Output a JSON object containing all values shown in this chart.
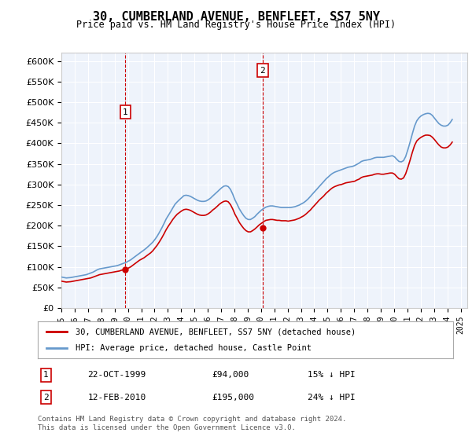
{
  "title": "30, CUMBERLAND AVENUE, BENFLEET, SS7 5NY",
  "subtitle": "Price paid vs. HM Land Registry's House Price Index (HPI)",
  "ylabel": "",
  "ylim": [
    0,
    620000
  ],
  "yticks": [
    0,
    50000,
    100000,
    150000,
    200000,
    250000,
    300000,
    350000,
    400000,
    450000,
    500000,
    550000,
    600000
  ],
  "xlim_start": 1995.0,
  "xlim_end": 2025.5,
  "background_color": "#ffffff",
  "plot_bg_color": "#eef3fb",
  "grid_color": "#ffffff",
  "red_line_color": "#cc0000",
  "blue_line_color": "#6699cc",
  "vline_color": "#cc0000",
  "marker1_date": 1999.81,
  "marker2_date": 2010.12,
  "marker1_price": 94000,
  "marker2_price": 195000,
  "legend_label_red": "30, CUMBERLAND AVENUE, BENFLEET, SS7 5NY (detached house)",
  "legend_label_blue": "HPI: Average price, detached house, Castle Point",
  "annotation1_label": "1",
  "annotation2_label": "2",
  "footnote": "Contains HM Land Registry data © Crown copyright and database right 2024.\nThis data is licensed under the Open Government Licence v3.0.",
  "table_rows": [
    [
      "1",
      "22-OCT-1999",
      "£94,000",
      "15% ↓ HPI"
    ],
    [
      "2",
      "12-FEB-2010",
      "£195,000",
      "24% ↓ HPI"
    ]
  ],
  "hpi_data": {
    "years": [
      1995.04,
      1995.21,
      1995.37,
      1995.54,
      1995.71,
      1995.87,
      1996.04,
      1996.21,
      1996.37,
      1996.54,
      1996.71,
      1996.87,
      1997.04,
      1997.21,
      1997.37,
      1997.54,
      1997.71,
      1997.87,
      1998.04,
      1998.21,
      1998.37,
      1998.54,
      1998.71,
      1998.87,
      1999.04,
      1999.21,
      1999.37,
      1999.54,
      1999.71,
      1999.87,
      2000.04,
      2000.21,
      2000.37,
      2000.54,
      2000.71,
      2000.87,
      2001.04,
      2001.21,
      2001.37,
      2001.54,
      2001.71,
      2001.87,
      2002.04,
      2002.21,
      2002.37,
      2002.54,
      2002.71,
      2002.87,
      2003.04,
      2003.21,
      2003.37,
      2003.54,
      2003.71,
      2003.87,
      2004.04,
      2004.21,
      2004.37,
      2004.54,
      2004.71,
      2004.87,
      2005.04,
      2005.21,
      2005.37,
      2005.54,
      2005.71,
      2005.87,
      2006.04,
      2006.21,
      2006.37,
      2006.54,
      2006.71,
      2006.87,
      2007.04,
      2007.21,
      2007.37,
      2007.54,
      2007.71,
      2007.87,
      2008.04,
      2008.21,
      2008.37,
      2008.54,
      2008.71,
      2008.87,
      2009.04,
      2009.21,
      2009.37,
      2009.54,
      2009.71,
      2009.87,
      2010.04,
      2010.21,
      2010.37,
      2010.54,
      2010.71,
      2010.87,
      2011.04,
      2011.21,
      2011.37,
      2011.54,
      2011.71,
      2011.87,
      2012.04,
      2012.21,
      2012.37,
      2012.54,
      2012.71,
      2012.87,
      2013.04,
      2013.21,
      2013.37,
      2013.54,
      2013.71,
      2013.87,
      2014.04,
      2014.21,
      2014.37,
      2014.54,
      2014.71,
      2014.87,
      2015.04,
      2015.21,
      2015.37,
      2015.54,
      2015.71,
      2015.87,
      2016.04,
      2016.21,
      2016.37,
      2016.54,
      2016.71,
      2016.87,
      2017.04,
      2017.21,
      2017.37,
      2017.54,
      2017.71,
      2017.87,
      2018.04,
      2018.21,
      2018.37,
      2018.54,
      2018.71,
      2018.87,
      2019.04,
      2019.21,
      2019.37,
      2019.54,
      2019.71,
      2019.87,
      2020.04,
      2020.21,
      2020.37,
      2020.54,
      2020.71,
      2020.87,
      2021.04,
      2021.21,
      2021.37,
      2021.54,
      2021.71,
      2021.87,
      2022.04,
      2022.21,
      2022.37,
      2022.54,
      2022.71,
      2022.87,
      2023.04,
      2023.21,
      2023.37,
      2023.54,
      2023.71,
      2023.87,
      2024.04,
      2024.21,
      2024.37
    ],
    "values": [
      75000,
      74000,
      73000,
      73500,
      74000,
      75000,
      76000,
      77000,
      78000,
      79000,
      80000,
      81000,
      83000,
      85000,
      87000,
      90000,
      93000,
      95000,
      96000,
      97000,
      98000,
      99000,
      100000,
      101000,
      102000,
      103000,
      105000,
      107000,
      109000,
      111000,
      114000,
      117000,
      121000,
      125000,
      129000,
      133000,
      137000,
      141000,
      145000,
      150000,
      155000,
      160000,
      167000,
      175000,
      184000,
      194000,
      205000,
      216000,
      225000,
      234000,
      243000,
      252000,
      258000,
      263000,
      268000,
      273000,
      274000,
      273000,
      271000,
      268000,
      265000,
      262000,
      260000,
      259000,
      259000,
      260000,
      263000,
      267000,
      272000,
      277000,
      282000,
      287000,
      292000,
      296000,
      297000,
      295000,
      288000,
      277000,
      263000,
      252000,
      241000,
      232000,
      224000,
      218000,
      215000,
      215000,
      218000,
      222000,
      228000,
      233000,
      238000,
      242000,
      245000,
      247000,
      248000,
      248000,
      247000,
      246000,
      245000,
      244000,
      244000,
      244000,
      244000,
      244000,
      245000,
      246000,
      248000,
      250000,
      253000,
      256000,
      260000,
      265000,
      271000,
      277000,
      283000,
      289000,
      295000,
      301000,
      307000,
      313000,
      318000,
      323000,
      327000,
      330000,
      332000,
      334000,
      336000,
      338000,
      340000,
      342000,
      343000,
      344000,
      346000,
      349000,
      352000,
      356000,
      358000,
      359000,
      360000,
      361000,
      363000,
      365000,
      366000,
      366000,
      366000,
      366000,
      367000,
      368000,
      369000,
      370000,
      367000,
      361000,
      356000,
      355000,
      358000,
      368000,
      385000,
      404000,
      423000,
      442000,
      455000,
      462000,
      467000,
      470000,
      472000,
      473000,
      472000,
      468000,
      461000,
      454000,
      448000,
      444000,
      442000,
      442000,
      444000,
      450000,
      458000
    ]
  },
  "red_data": {
    "years": [
      1995.04,
      1995.21,
      1995.37,
      1995.54,
      1995.71,
      1995.87,
      1996.04,
      1996.21,
      1996.37,
      1996.54,
      1996.71,
      1996.87,
      1997.04,
      1997.21,
      1997.37,
      1997.54,
      1997.71,
      1997.87,
      1998.04,
      1998.21,
      1998.37,
      1998.54,
      1998.71,
      1998.87,
      1999.04,
      1999.21,
      1999.37,
      1999.54,
      1999.71,
      1999.87,
      2000.04,
      2000.21,
      2000.37,
      2000.54,
      2000.71,
      2000.87,
      2001.04,
      2001.21,
      2001.37,
      2001.54,
      2001.71,
      2001.87,
      2002.04,
      2002.21,
      2002.37,
      2002.54,
      2002.71,
      2002.87,
      2003.04,
      2003.21,
      2003.37,
      2003.54,
      2003.71,
      2003.87,
      2004.04,
      2004.21,
      2004.37,
      2004.54,
      2004.71,
      2004.87,
      2005.04,
      2005.21,
      2005.37,
      2005.54,
      2005.71,
      2005.87,
      2006.04,
      2006.21,
      2006.37,
      2006.54,
      2006.71,
      2006.87,
      2007.04,
      2007.21,
      2007.37,
      2007.54,
      2007.71,
      2007.87,
      2008.04,
      2008.21,
      2008.37,
      2008.54,
      2008.71,
      2008.87,
      2009.04,
      2009.21,
      2009.37,
      2009.54,
      2009.71,
      2009.87,
      2010.04,
      2010.21,
      2010.37,
      2010.54,
      2010.71,
      2010.87,
      2011.04,
      2011.21,
      2011.37,
      2011.54,
      2011.71,
      2011.87,
      2012.04,
      2012.21,
      2012.37,
      2012.54,
      2012.71,
      2012.87,
      2013.04,
      2013.21,
      2013.37,
      2013.54,
      2013.71,
      2013.87,
      2014.04,
      2014.21,
      2014.37,
      2014.54,
      2014.71,
      2014.87,
      2015.04,
      2015.21,
      2015.37,
      2015.54,
      2015.71,
      2015.87,
      2016.04,
      2016.21,
      2016.37,
      2016.54,
      2016.71,
      2016.87,
      2017.04,
      2017.21,
      2017.37,
      2017.54,
      2017.71,
      2017.87,
      2018.04,
      2018.21,
      2018.37,
      2018.54,
      2018.71,
      2018.87,
      2019.04,
      2019.21,
      2019.37,
      2019.54,
      2019.71,
      2019.87,
      2020.04,
      2020.21,
      2020.37,
      2020.54,
      2020.71,
      2020.87,
      2021.04,
      2021.21,
      2021.37,
      2021.54,
      2021.71,
      2021.87,
      2022.04,
      2022.21,
      2022.37,
      2022.54,
      2022.71,
      2022.87,
      2023.04,
      2023.21,
      2023.37,
      2023.54,
      2023.71,
      2023.87,
      2024.04,
      2024.21,
      2024.37
    ],
    "values": [
      65000,
      64000,
      63000,
      63500,
      64000,
      65000,
      66000,
      67000,
      68000,
      69000,
      70000,
      71000,
      72000,
      73000,
      75000,
      77000,
      79000,
      81000,
      82000,
      83000,
      84000,
      85000,
      86000,
      87000,
      88000,
      89000,
      90000,
      92000,
      93000,
      94000,
      97000,
      100000,
      104000,
      108000,
      112000,
      116000,
      119000,
      122000,
      126000,
      130000,
      134000,
      139000,
      146000,
      153000,
      161000,
      170000,
      180000,
      190000,
      199000,
      207000,
      215000,
      222000,
      228000,
      232000,
      236000,
      239000,
      240000,
      239000,
      237000,
      234000,
      231000,
      228000,
      226000,
      225000,
      225000,
      226000,
      229000,
      233000,
      238000,
      242000,
      247000,
      252000,
      256000,
      259000,
      260000,
      258000,
      251000,
      241000,
      228000,
      218000,
      208000,
      200000,
      193000,
      188000,
      185000,
      185000,
      188000,
      192000,
      197000,
      202000,
      206000,
      210000,
      213000,
      214000,
      215000,
      215000,
      214000,
      213000,
      213000,
      212000,
      212000,
      212000,
      211000,
      212000,
      213000,
      214000,
      216000,
      218000,
      221000,
      224000,
      228000,
      233000,
      238000,
      244000,
      250000,
      256000,
      262000,
      267000,
      272000,
      278000,
      283000,
      288000,
      292000,
      295000,
      297000,
      299000,
      300000,
      302000,
      304000,
      305000,
      306000,
      307000,
      308000,
      311000,
      313000,
      317000,
      319000,
      320000,
      321000,
      322000,
      323000,
      325000,
      326000,
      326000,
      325000,
      325000,
      326000,
      327000,
      328000,
      328000,
      325000,
      319000,
      314000,
      313000,
      316000,
      326000,
      342000,
      360000,
      378000,
      395000,
      406000,
      411000,
      415000,
      418000,
      420000,
      420000,
      419000,
      415000,
      409000,
      402000,
      396000,
      391000,
      389000,
      389000,
      391000,
      396000,
      403000
    ]
  }
}
